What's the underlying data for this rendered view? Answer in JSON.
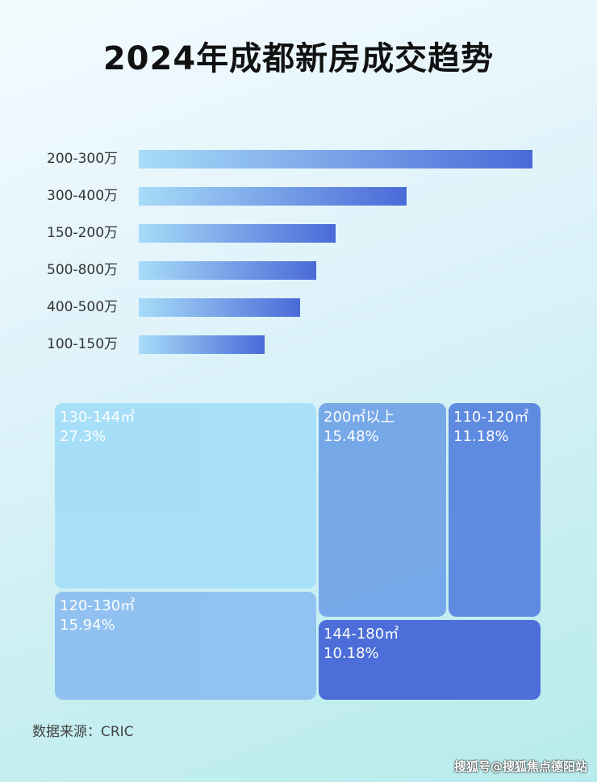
{
  "chart_data": [
    {
      "type": "bar",
      "orientation": "horizontal",
      "title": "2024年成都新房成交趋势",
      "categories": [
        "200-300万",
        "300-400万",
        "150-200万",
        "500-800万",
        "400-500万",
        "100-150万"
      ],
      "values": [
        100,
        68,
        50,
        45,
        41,
        32
      ],
      "colors": {
        "start": "#a8dcf8",
        "end": "#4a6ad8"
      }
    },
    {
      "type": "treemap",
      "items": [
        {
          "label": "130-144㎡",
          "value": "27.3%",
          "color": "#a6dff8"
        },
        {
          "label": "120-130㎡",
          "value": "15.94%",
          "color": "#8fc0f0"
        },
        {
          "label": "200㎡以上",
          "value": "15.48%",
          "color": "#74a6e8"
        },
        {
          "label": "110-120㎡",
          "value": "11.18%",
          "color": "#5b87e0"
        },
        {
          "label": "144-180㎡",
          "value": "10.18%",
          "color": "#4a6ad8"
        }
      ]
    }
  ],
  "source": "数据来源：CRIC",
  "watermark": "搜狐号@搜狐焦点德阳站"
}
